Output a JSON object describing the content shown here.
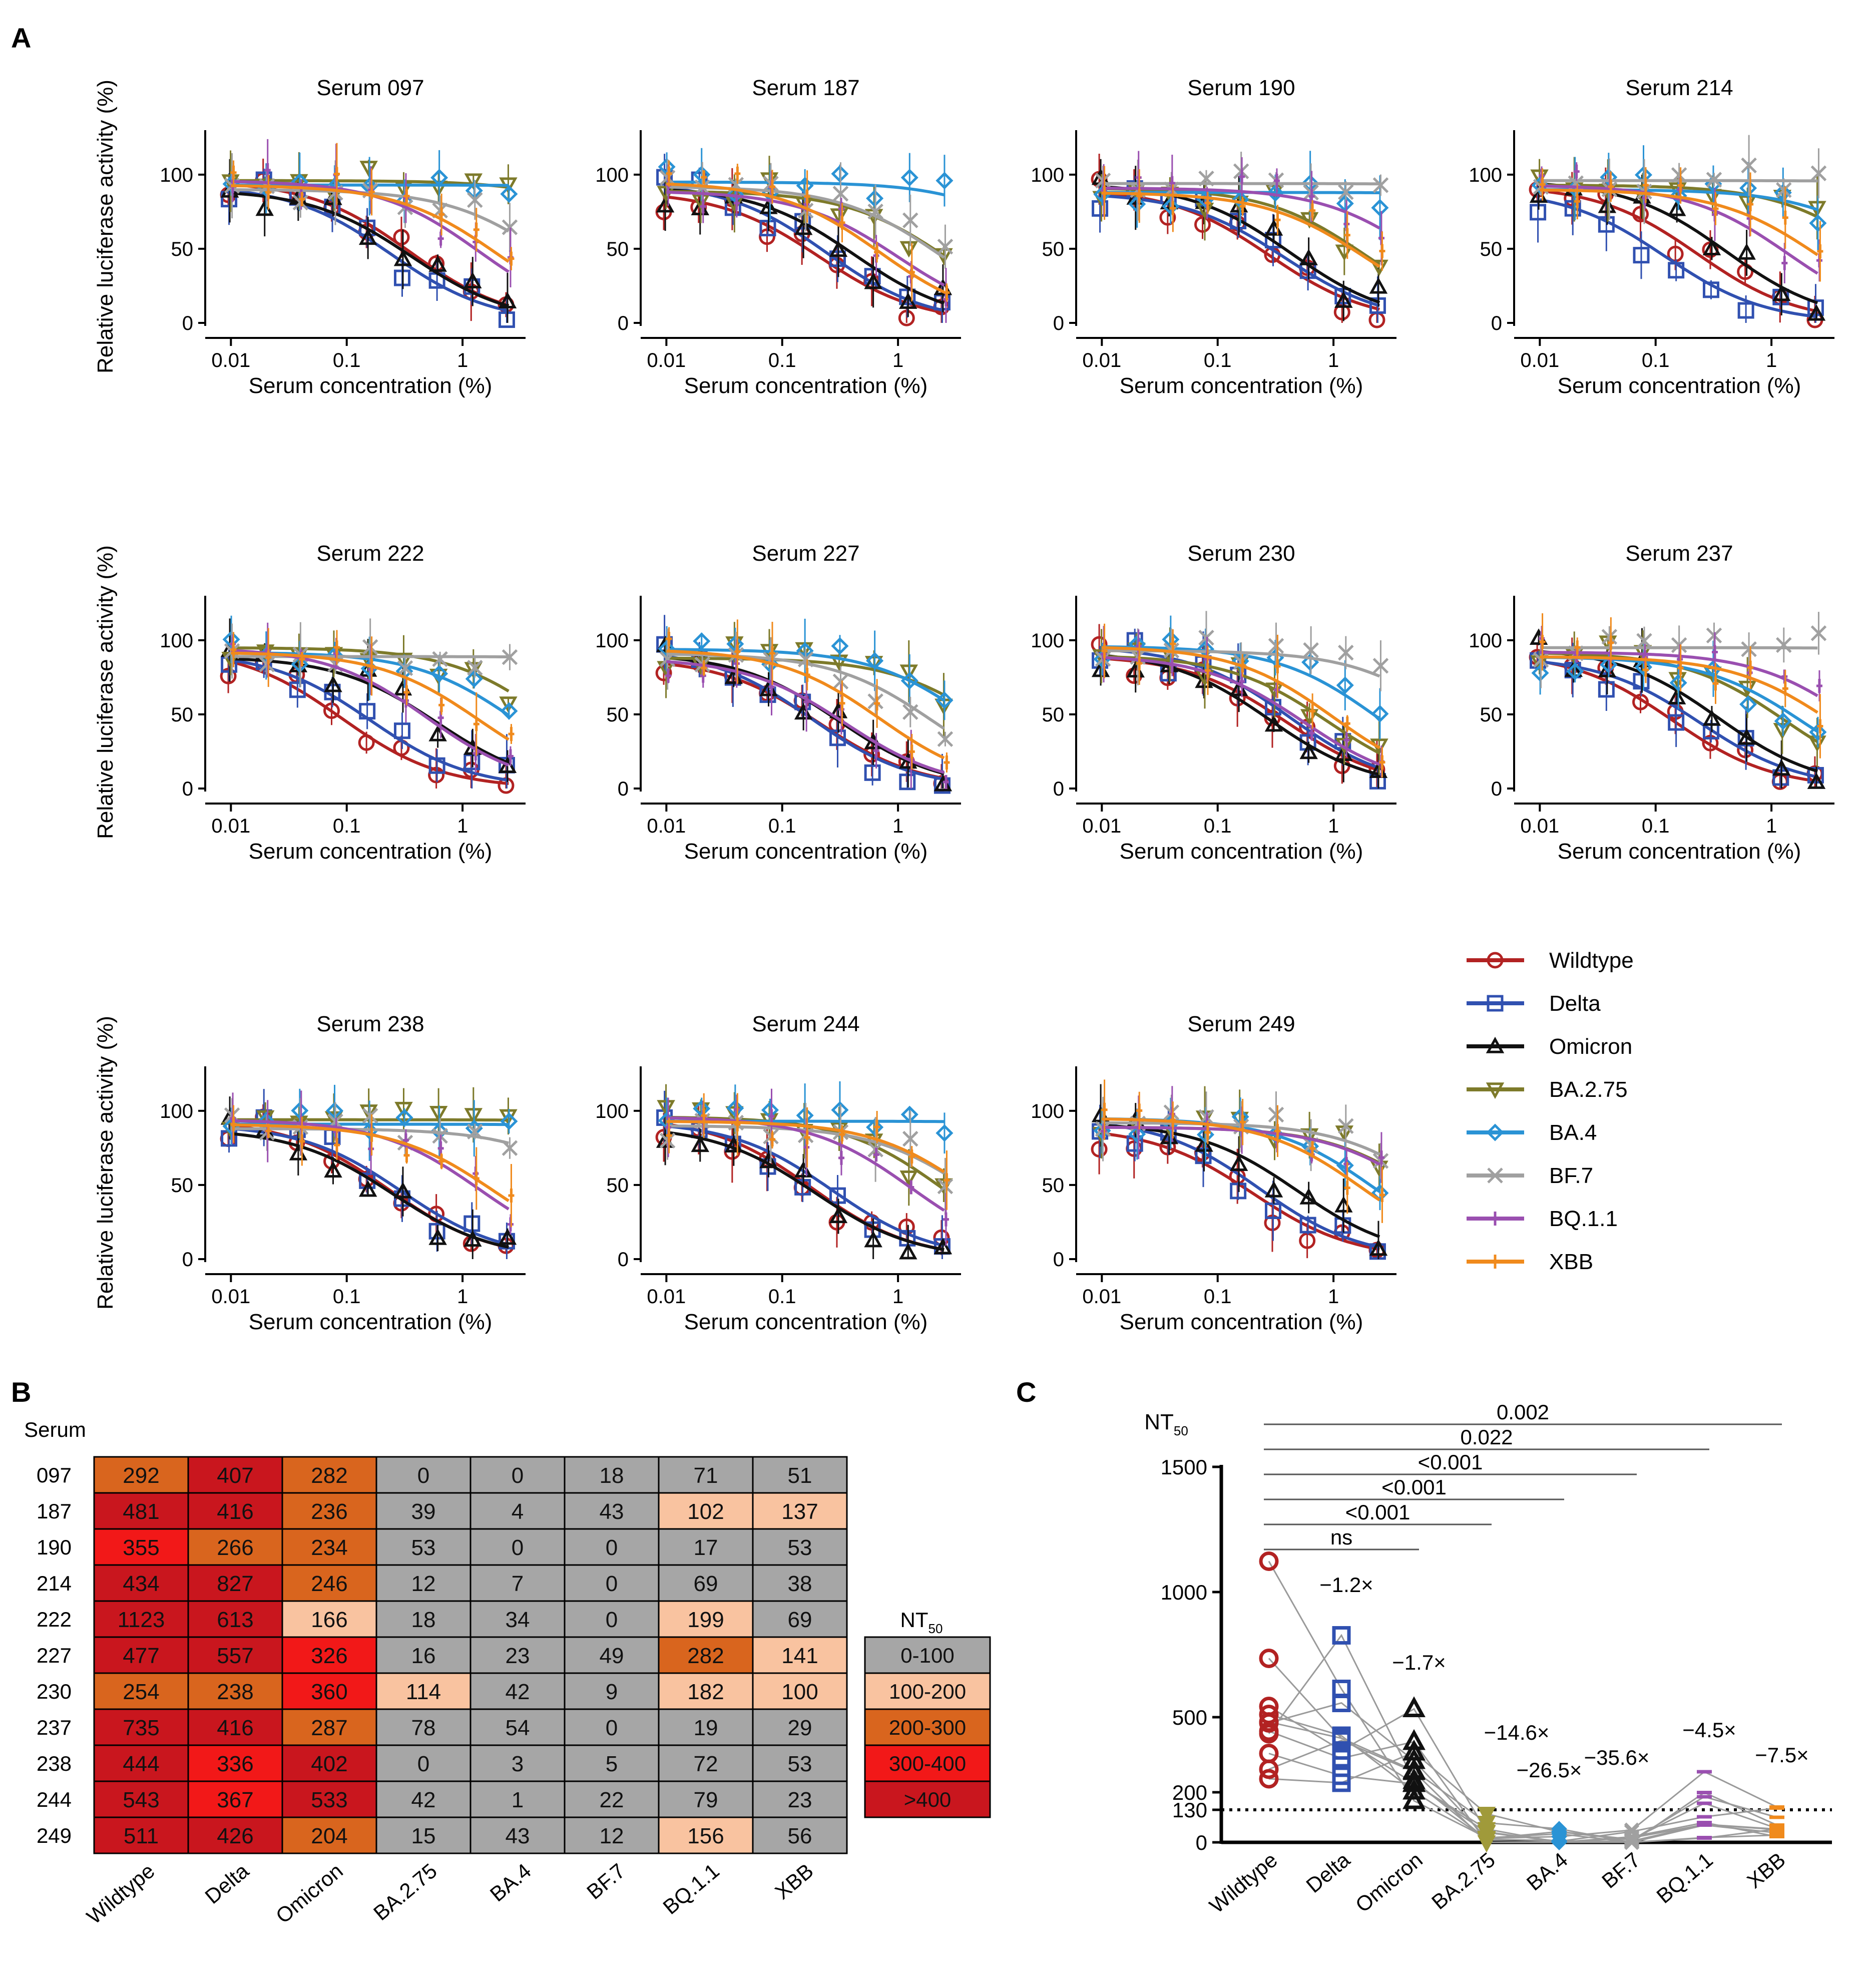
{
  "panel_letters": {
    "a": "A",
    "b": "B",
    "c": "C"
  },
  "panelA": {
    "x_label": "Serum concentration (%)",
    "y_label": "Relative luciferase activity (%)",
    "x_ticks": [
      {
        "v": 0.01,
        "label": "0.01"
      },
      {
        "v": 0.1,
        "label": "0.1"
      },
      {
        "v": 1,
        "label": "1"
      }
    ],
    "y_ticks": [
      {
        "v": 0,
        "label": "0"
      },
      {
        "v": 50,
        "label": "50"
      },
      {
        "v": 100,
        "label": "100"
      }
    ],
    "x_domain": [
      0.006,
      3.5
    ],
    "y_domain": [
      0,
      130
    ],
    "x_points": [
      0.01,
      0.02,
      0.039,
      0.078,
      0.156,
      0.3125,
      0.625,
      1.25,
      2.5
    ],
    "variants": [
      {
        "key": "wt",
        "name": "Wildtype",
        "color": "#B22222",
        "marker": "circle"
      },
      {
        "key": "delta",
        "name": "Delta",
        "color": "#3050B0",
        "marker": "square"
      },
      {
        "key": "omicron",
        "name": "Omicron",
        "color": "#111111",
        "marker": "triangle-up"
      },
      {
        "key": "ba275",
        "name": "BA.2.75",
        "color": "#7D7A2A",
        "marker": "triangle-down"
      },
      {
        "key": "ba4",
        "name": "BA.4",
        "color": "#2A93D5",
        "marker": "diamond"
      },
      {
        "key": "bf7",
        "name": "BF.7",
        "color": "#A0A0A0",
        "marker": "x"
      },
      {
        "key": "bq11",
        "name": "BQ.1.1",
        "color": "#9A4FB0",
        "marker": "tick"
      },
      {
        "key": "xbb",
        "name": "XBB",
        "color": "#F08A1C",
        "marker": "tick"
      }
    ]
  },
  "chart_data": [
    {
      "type": "line",
      "id": "panelA-neutralization-curves",
      "xscale": "log",
      "xlabel": "Serum concentration (%)",
      "ylabel": "Relative luciferase activity (%)",
      "ylim": [
        0,
        130
      ],
      "subplots": [
        {
          "title": "Serum 097",
          "ic50": {
            "wt": 0.35,
            "delta": 0.24,
            "omicron": 0.36,
            "ba275": 50,
            "ba4": 1000,
            "bf7": 5.5,
            "bq11": 1.4,
            "xbb": 2.0
          }
        },
        {
          "title": "Serum 187",
          "ic50": {
            "wt": 0.21,
            "delta": 0.24,
            "omicron": 0.42,
            "ba275": 2.6,
            "ba4": 25,
            "bf7": 2.3,
            "bq11": 1.0,
            "xbb": 0.7
          }
        },
        {
          "title": "Serum 190",
          "ic50": {
            "wt": 0.28,
            "delta": 0.38,
            "omicron": 0.43,
            "ba275": 1.9,
            "ba4": 1000,
            "bf7": 1000,
            "bq11": 5.9,
            "xbb": 1.9
          }
        },
        {
          "title": "Serum 214",
          "ic50": {
            "wt": 0.23,
            "delta": 0.12,
            "omicron": 0.41,
            "ba275": 8.3,
            "ba4": 14,
            "bf7": 1000,
            "bq11": 1.4,
            "xbb": 2.6
          }
        },
        {
          "title": "Serum 222",
          "ic50": {
            "wt": 0.09,
            "delta": 0.16,
            "omicron": 0.6,
            "ba275": 5.6,
            "ba4": 2.9,
            "bf7": 1000,
            "bq11": 0.5,
            "xbb": 1.4
          }
        },
        {
          "title": "Serum 227",
          "ic50": {
            "wt": 0.21,
            "delta": 0.18,
            "omicron": 0.31,
            "ba275": 6.3,
            "ba4": 4.3,
            "bf7": 2.0,
            "bq11": 0.35,
            "xbb": 0.7
          }
        },
        {
          "title": "Serum 230",
          "ic50": {
            "wt": 0.39,
            "delta": 0.42,
            "omicron": 0.28,
            "ba275": 0.9,
            "ba4": 2.4,
            "bf7": 11,
            "bq11": 0.55,
            "xbb": 1.0
          }
        },
        {
          "title": "Serum 237",
          "ic50": {
            "wt": 0.14,
            "delta": 0.24,
            "omicron": 0.35,
            "ba275": 1.3,
            "ba4": 1.9,
            "bf7": 1000,
            "bq11": 5.3,
            "xbb": 3.4
          }
        },
        {
          "title": "Serum 238",
          "ic50": {
            "wt": 0.23,
            "delta": 0.3,
            "omicron": 0.25,
            "ba275": 1000,
            "ba4": 1000,
            "bf7": 20,
            "bq11": 1.4,
            "xbb": 1.9
          }
        },
        {
          "title": "Serum 244",
          "ic50": {
            "wt": 0.18,
            "delta": 0.27,
            "omicron": 0.19,
            "ba275": 2.4,
            "ba4": 1000,
            "bf7": 4.5,
            "bq11": 1.3,
            "xbb": 4.3
          }
        },
        {
          "title": "Serum 249",
          "ic50": {
            "wt": 0.2,
            "delta": 0.23,
            "omicron": 0.49,
            "ba275": 6.7,
            "ba4": 2.3,
            "bf7": 8.3,
            "bq11": 6.4,
            "xbb": 1.8
          }
        }
      ]
    },
    {
      "type": "heatmap",
      "id": "panelB-NT50-table",
      "title": "Serum",
      "columns": [
        "Wildtype",
        "Delta",
        "Omicron",
        "BA.2.75",
        "BA.4",
        "BF.7",
        "BQ.1.1",
        "XBB"
      ],
      "rows": [
        {
          "serum": "097",
          "values": [
            292,
            407,
            282,
            0,
            0,
            18,
            71,
            51
          ]
        },
        {
          "serum": "187",
          "values": [
            481,
            416,
            236,
            39,
            4,
            43,
            102,
            137
          ]
        },
        {
          "serum": "190",
          "values": [
            355,
            266,
            234,
            53,
            0,
            0,
            17,
            53
          ]
        },
        {
          "serum": "214",
          "values": [
            434,
            827,
            246,
            12,
            7,
            0,
            69,
            38
          ]
        },
        {
          "serum": "222",
          "values": [
            1123,
            613,
            166,
            18,
            34,
            0,
            199,
            69
          ]
        },
        {
          "serum": "227",
          "values": [
            477,
            557,
            326,
            16,
            23,
            49,
            282,
            141
          ]
        },
        {
          "serum": "230",
          "values": [
            254,
            238,
            360,
            114,
            42,
            9,
            182,
            100
          ]
        },
        {
          "serum": "237",
          "values": [
            735,
            416,
            287,
            78,
            54,
            0,
            19,
            29
          ]
        },
        {
          "serum": "238",
          "values": [
            444,
            336,
            402,
            0,
            3,
            5,
            72,
            53
          ]
        },
        {
          "serum": "244",
          "values": [
            543,
            367,
            533,
            42,
            1,
            22,
            79,
            23
          ]
        },
        {
          "serum": "249",
          "values": [
            511,
            426,
            204,
            15,
            43,
            12,
            156,
            56
          ]
        }
      ],
      "legend": {
        "title_main": "NT",
        "title_sub": "50",
        "bins": [
          {
            "label": "0-100",
            "color": "#A6A6A6"
          },
          {
            "label": "100-200",
            "color": "#F9C3A0"
          },
          {
            "label": "200-300",
            "color": "#D9651E"
          },
          {
            "label": "300-400",
            "color": "#F21818"
          },
          {
            "label": ">400",
            "color": "#C9161E"
          }
        ]
      }
    },
    {
      "type": "scatter",
      "id": "panelC-NT50-paired",
      "ylabel_main": "NT",
      "ylabel_sub": "50",
      "categories": [
        "Wildtype",
        "Delta",
        "Omicron",
        "BA.2.75",
        "BA.4",
        "BF.7",
        "BQ.1.1",
        "XBB"
      ],
      "y_ticks": [
        {
          "v": 0,
          "label": "0"
        },
        {
          "v": 130,
          "label": "130"
        },
        {
          "v": 200,
          "label": "200"
        },
        {
          "v": 500,
          "label": "500"
        },
        {
          "v": 1000,
          "label": "1000"
        },
        {
          "v": 1500,
          "label": "1500"
        }
      ],
      "ylim": [
        0,
        1500
      ],
      "threshold": 130,
      "fold_labels": [
        "",
        "−1.2×",
        "−1.7×",
        "−14.6×",
        "−26.5×",
        "−35.6×",
        "−4.5×",
        "−7.5×"
      ],
      "comparisons": [
        {
          "from": 0,
          "to": 7,
          "label": "0.002"
        },
        {
          "from": 0,
          "to": 6,
          "label": "0.022"
        },
        {
          "from": 0,
          "to": 5,
          "label": "<0.001"
        },
        {
          "from": 0,
          "to": 4,
          "label": "<0.001"
        },
        {
          "from": 0,
          "to": 3,
          "label": "<0.001"
        },
        {
          "from": 0,
          "to": 2,
          "label": "ns"
        }
      ]
    }
  ]
}
